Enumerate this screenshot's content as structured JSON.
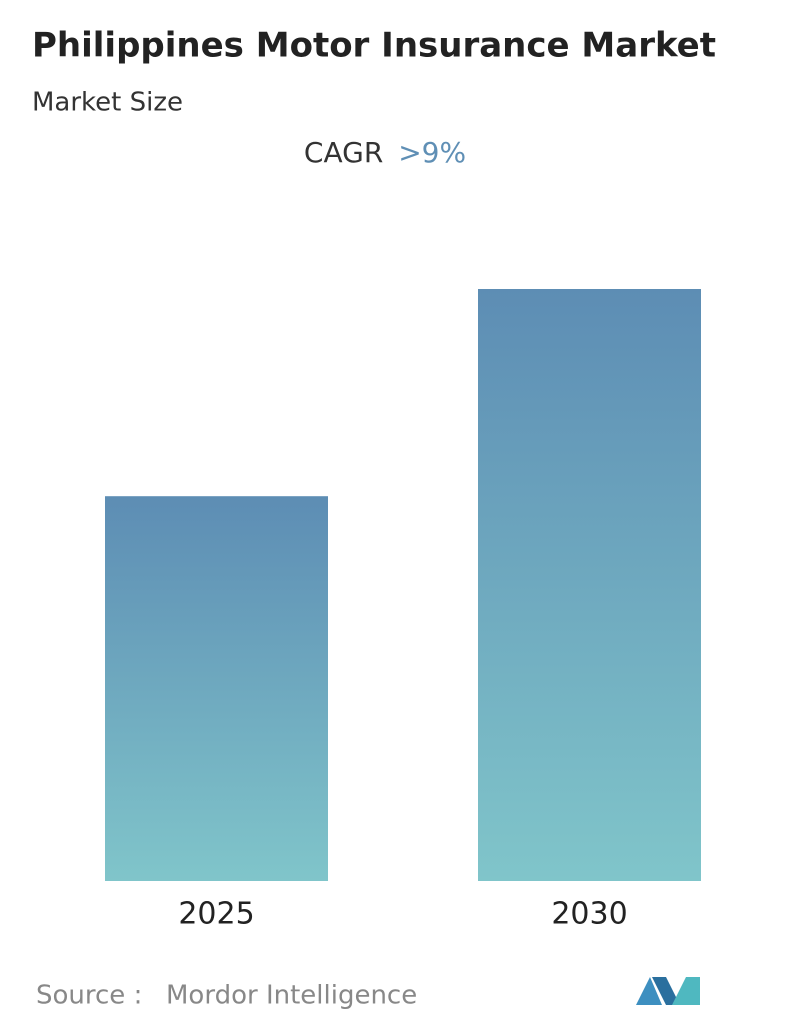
{
  "chart_data": {
    "type": "bar",
    "title": "Philippines Motor Insurance Market",
    "subtitle": "Market Size",
    "cagr_label": "CAGR",
    "cagr_value": ">9%",
    "categories": [
      "2025",
      "2030"
    ],
    "values": [
      65,
      100
    ],
    "color_top": "#5d8db4",
    "color_bottom": "#80c5ca",
    "source_label": "Source :",
    "source": "Mordor Intelligence"
  }
}
